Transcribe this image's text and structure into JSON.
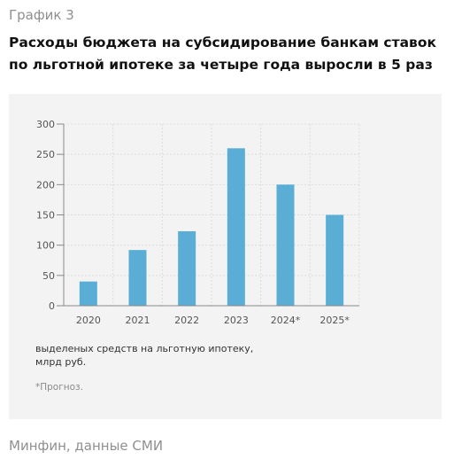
{
  "header": {
    "kicker": "График 3",
    "title": "Расходы бюджета на субсидирование банкам ставок по льготной ипотеке за четыре года выросли в 5 раз"
  },
  "chart_note": {
    "lines": [
      "выделеных средств на льготную ипотеку,",
      "млрд руб."
    ],
    "forecast": "*Прогноз."
  },
  "footer": {
    "source": "Минфин, данные СМИ"
  },
  "colors": {
    "bar": "#5aaed6",
    "grid": "#dcdcdc",
    "card_bg": "#f3f3f3"
  },
  "chart_data": {
    "type": "bar",
    "categories": [
      "2020",
      "2021",
      "2022",
      "2023",
      "2024*",
      "2025*"
    ],
    "values": [
      40,
      92,
      123,
      260,
      200,
      150
    ],
    "ylim": [
      0,
      300
    ],
    "yticks": [
      0,
      50,
      100,
      150,
      200,
      250,
      300
    ],
    "grid": true,
    "legend": "none"
  }
}
